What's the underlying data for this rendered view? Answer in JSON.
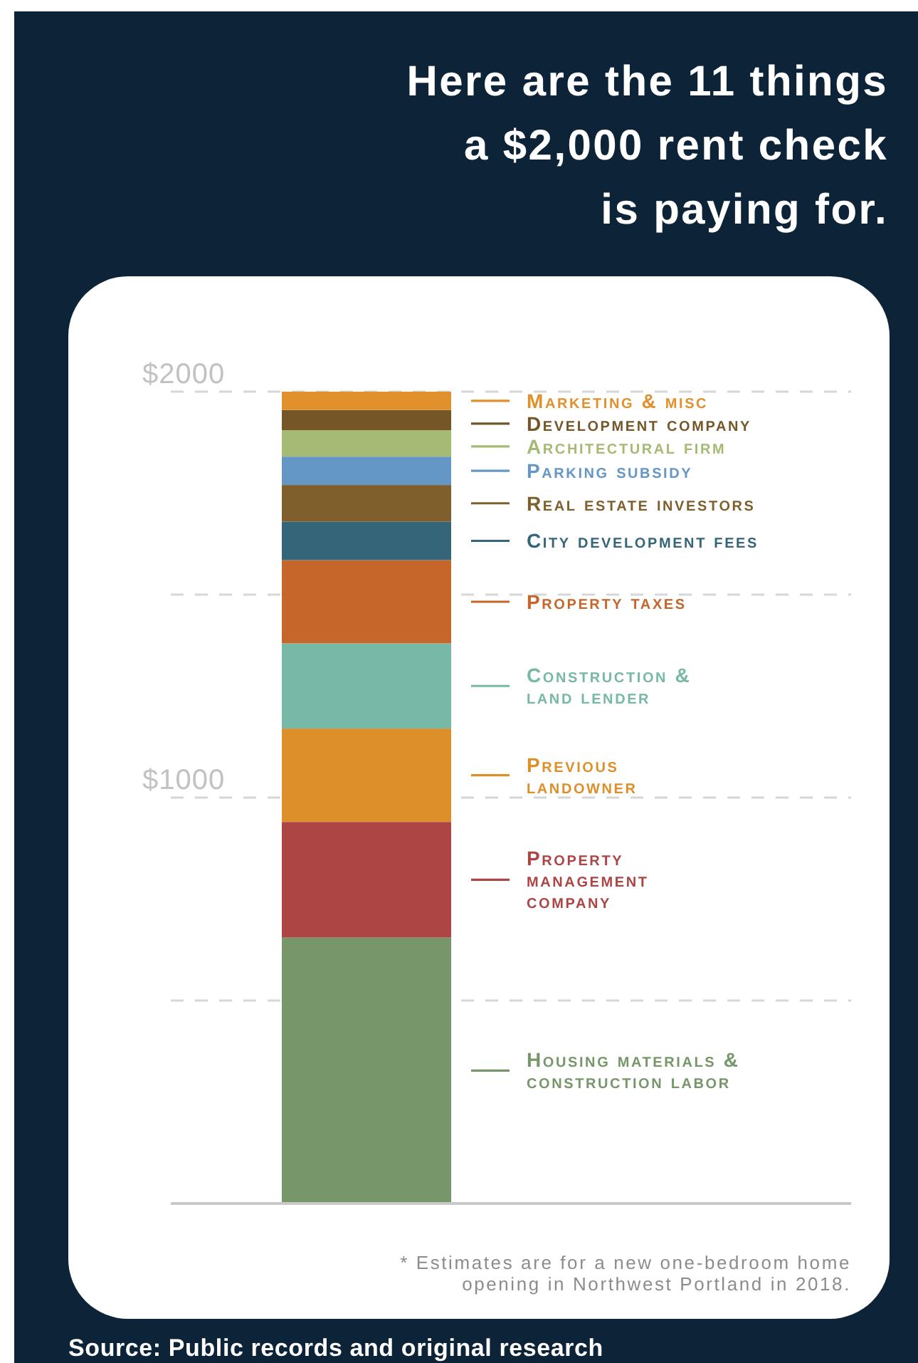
{
  "chart_data": {
    "type": "bar",
    "stacked": true,
    "title": "Here are the 11 things\na $2,000 rent check\nis paying for.",
    "categories": [
      null
    ],
    "ylim": [
      0,
      2000
    ],
    "yticks": [
      {
        "value": 500,
        "label": null
      },
      {
        "value": 1000,
        "label": "$1000"
      },
      {
        "value": 1500,
        "label": null
      },
      {
        "value": 2000,
        "label": "$2000"
      }
    ],
    "grid": "y",
    "legend": "right",
    "series": [
      {
        "name": "Housing materials &\nconstruction labor",
        "color": "#77966a",
        "values": [
          655
        ]
      },
      {
        "name": "Property\nmanagement\ncompany",
        "color": "#ad4545",
        "values": [
          285
        ]
      },
      {
        "name": "Previous\nlandowner",
        "color": "#dd8f2a",
        "values": [
          230
        ]
      },
      {
        "name": "Construction &\nland lender",
        "color": "#78b8a6",
        "values": [
          210
        ]
      },
      {
        "name": "Property taxes",
        "color": "#c6662a",
        "values": [
          205
        ]
      },
      {
        "name": "City development fees",
        "color": "#356578",
        "values": [
          95
        ]
      },
      {
        "name": "Real estate investors",
        "color": "#7f5f2b",
        "values": [
          90
        ]
      },
      {
        "name": "Parking subsidy",
        "color": "#6597c6",
        "values": [
          70
        ]
      },
      {
        "name": "Architectural firm",
        "color": "#a5bb74",
        "values": [
          65
        ]
      },
      {
        "name": "Development company",
        "color": "#755727",
        "values": [
          50
        ]
      },
      {
        "name": "Marketing & misc",
        "color": "#e0912c",
        "values": [
          45
        ]
      }
    ],
    "annotations": [
      "* Estimates are for a new one-bedroom home\nopening in Northwest Portland in 2018.",
      "Source: Public records and original research"
    ]
  }
}
